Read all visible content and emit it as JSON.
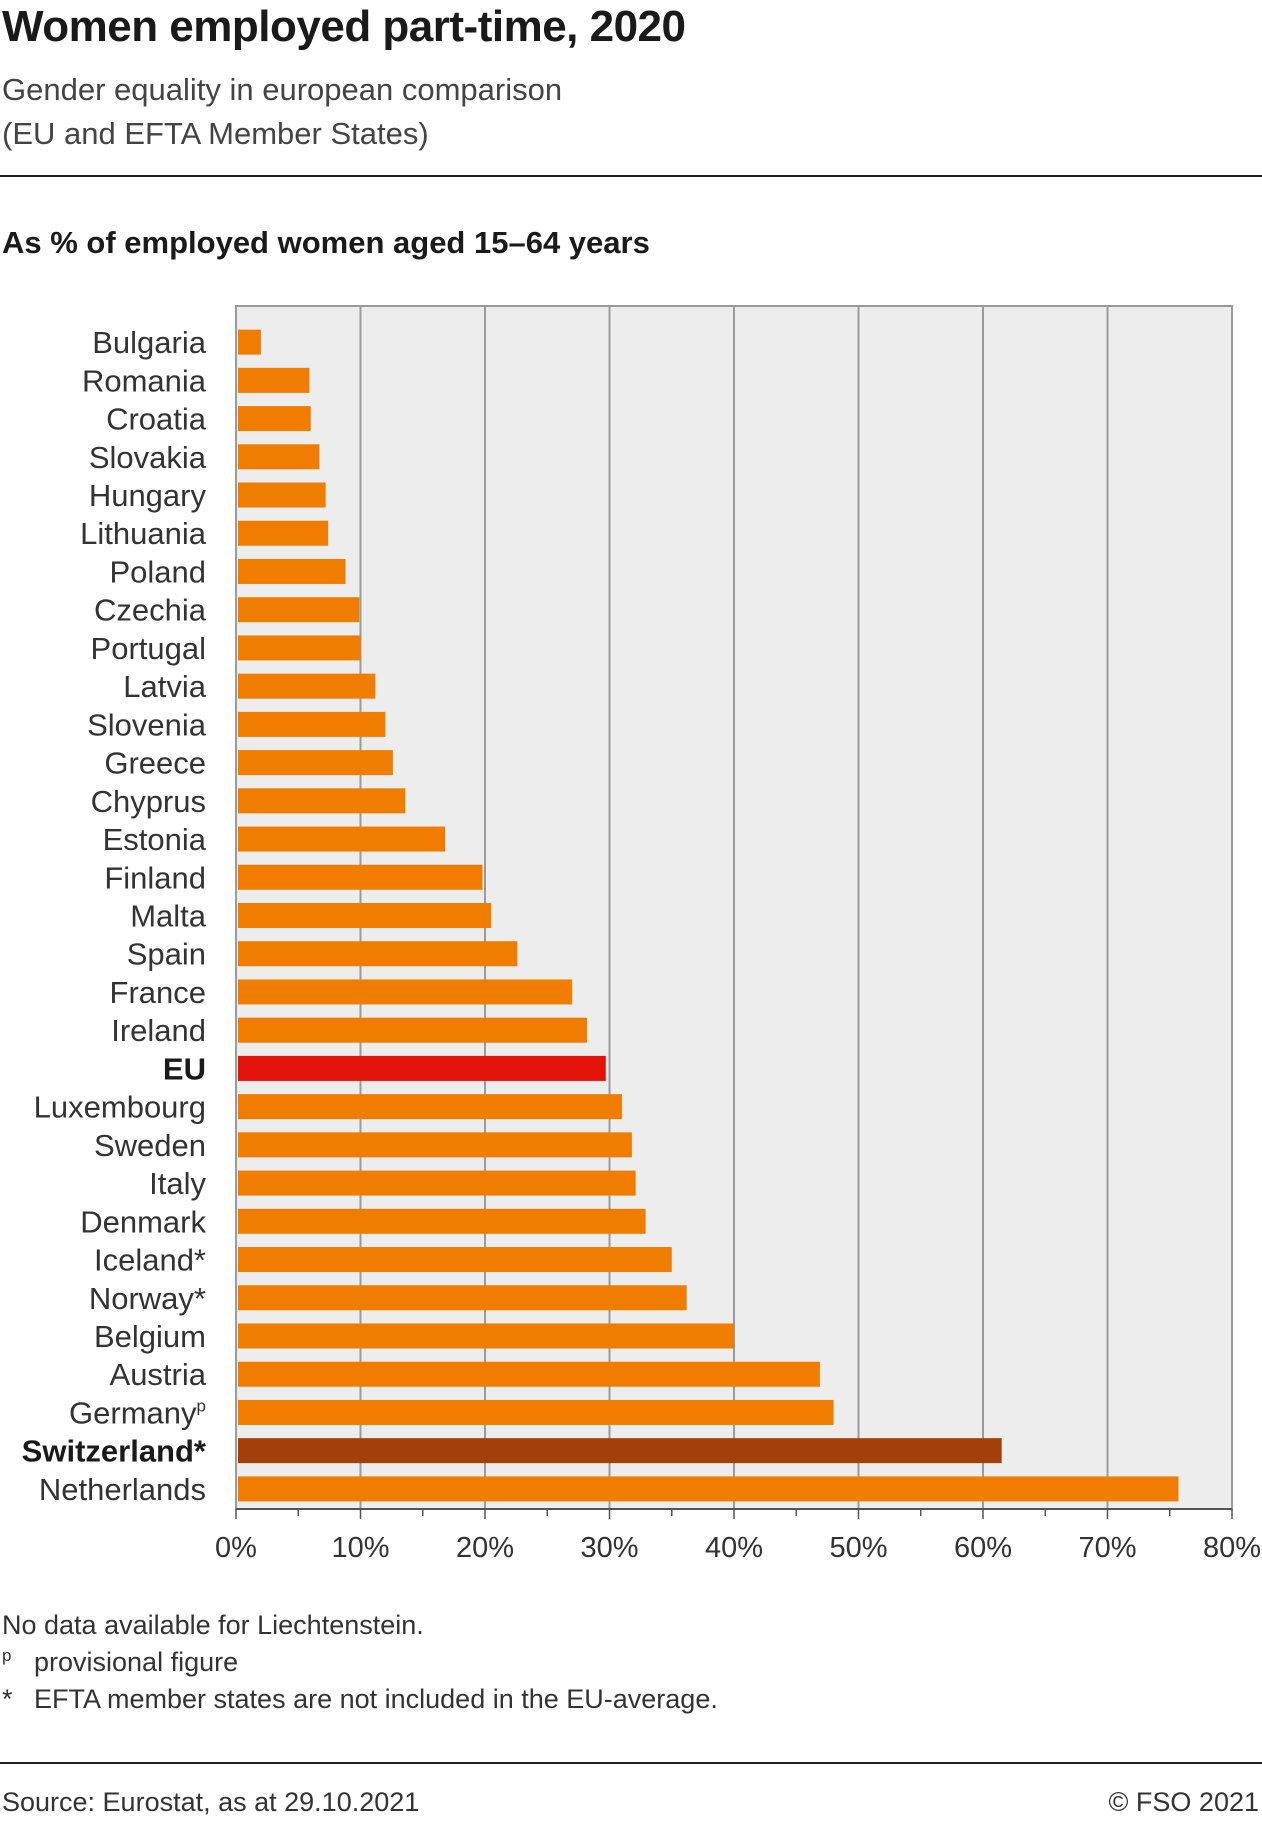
{
  "title": "Women employed part-time, 2020",
  "subtitle_line1": "Gender equality in european comparison",
  "subtitle_line2": "(EU and EFTA Member States)",
  "measure_label": "As % of employed women aged 15–64 years",
  "notes": {
    "no_data": "No data available for Liechtenstein.",
    "provisional_symbol": "p",
    "provisional": "provisional figure",
    "efta_symbol": "*",
    "efta": "EFTA member states are not included in the EU-average."
  },
  "source": "Source: Eurostat, as at 29.10.2021",
  "copyright": "© FSO 2021",
  "colors": {
    "bar": "#f07d00",
    "eu": "#e3120b",
    "switzerland": "#a33f0a",
    "plot_bg": "#ededed",
    "grid": "#9a9a9a"
  },
  "chart_data": {
    "type": "bar",
    "orientation": "horizontal",
    "categories": [
      "Bulgaria",
      "Romania",
      "Croatia",
      "Slovakia",
      "Hungary",
      "Lithuania",
      "Poland",
      "Czechia",
      "Portugal",
      "Latvia",
      "Slovenia",
      "Greece",
      "Chyprus",
      "Estonia",
      "Finland",
      "Malta",
      "Spain",
      "France",
      "Ireland",
      "EU",
      "Luxembourg",
      "Sweden",
      "Italy",
      "Denmark",
      "Iceland*",
      "Norway*",
      "Belgium",
      "Austria",
      "Germany",
      "Switzerland*",
      "Netherlands"
    ],
    "category_superscripts": {
      "Germany": "p"
    },
    "highlight": {
      "EU": "eu",
      "Switzerland*": "switzerland"
    },
    "bold_categories": [
      "EU",
      "Switzerland*"
    ],
    "values": [
      2.0,
      5.9,
      6.0,
      6.7,
      7.2,
      7.4,
      8.8,
      9.9,
      10.0,
      11.2,
      12.0,
      12.6,
      13.6,
      16.8,
      19.8,
      20.5,
      22.6,
      27.0,
      28.2,
      29.7,
      31.0,
      31.8,
      32.1,
      32.9,
      35.0,
      36.2,
      40.0,
      46.9,
      48.0,
      61.5,
      75.7
    ],
    "xlim": [
      0,
      80
    ],
    "x_ticks": [
      "0%",
      "10%",
      "20%",
      "30%",
      "40%",
      "50%",
      "60%",
      "70%",
      "80%"
    ],
    "grid": true
  }
}
